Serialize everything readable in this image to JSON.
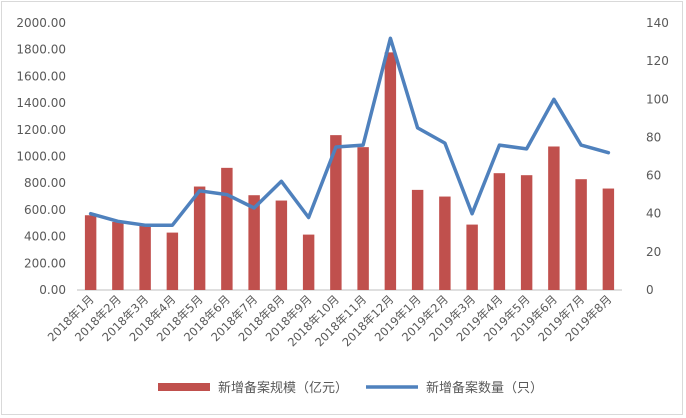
{
  "chart_data": {
    "type": "bar+line",
    "categories": [
      "2018年1月",
      "2018年2月",
      "2018年3月",
      "2018年4月",
      "2018年5月",
      "2018年6月",
      "2018年7月",
      "2018年8月",
      "2018年9月",
      "2018年10月",
      "2018年11月",
      "2018年12月",
      "2019年1月",
      "2019年2月",
      "2019年3月",
      "2019年4月",
      "2019年5月",
      "2019年6月",
      "2019年7月",
      "2019年8月"
    ],
    "series": [
      {
        "name": "新增备案规模（亿元）",
        "type": "bar",
        "axis": "left",
        "color": "#c0504d",
        "values": [
          560,
          510,
          480,
          430,
          775,
          915,
          710,
          670,
          415,
          1160,
          1070,
          1780,
          750,
          700,
          490,
          875,
          860,
          1075,
          830,
          760
        ]
      },
      {
        "name": "新增备案数量（只）",
        "type": "line",
        "axis": "right",
        "color": "#4f81bd",
        "values": [
          40,
          36,
          34,
          34,
          52,
          50,
          43,
          57,
          38,
          75,
          76,
          132,
          85,
          77,
          40,
          76,
          74,
          100,
          76,
          72
        ]
      }
    ],
    "y_left": {
      "min": 0,
      "max": 2000,
      "ticks": [
        "0.00",
        "200.00",
        "400.00",
        "600.00",
        "800.00",
        "1000.00",
        "1200.00",
        "1400.00",
        "1600.00",
        "1800.00",
        "2000.00"
      ]
    },
    "y_right": {
      "min": 0,
      "max": 140,
      "ticks": [
        "0",
        "20",
        "40",
        "60",
        "80",
        "100",
        "120",
        "140"
      ]
    },
    "grid": false,
    "legend_position": "bottom"
  }
}
